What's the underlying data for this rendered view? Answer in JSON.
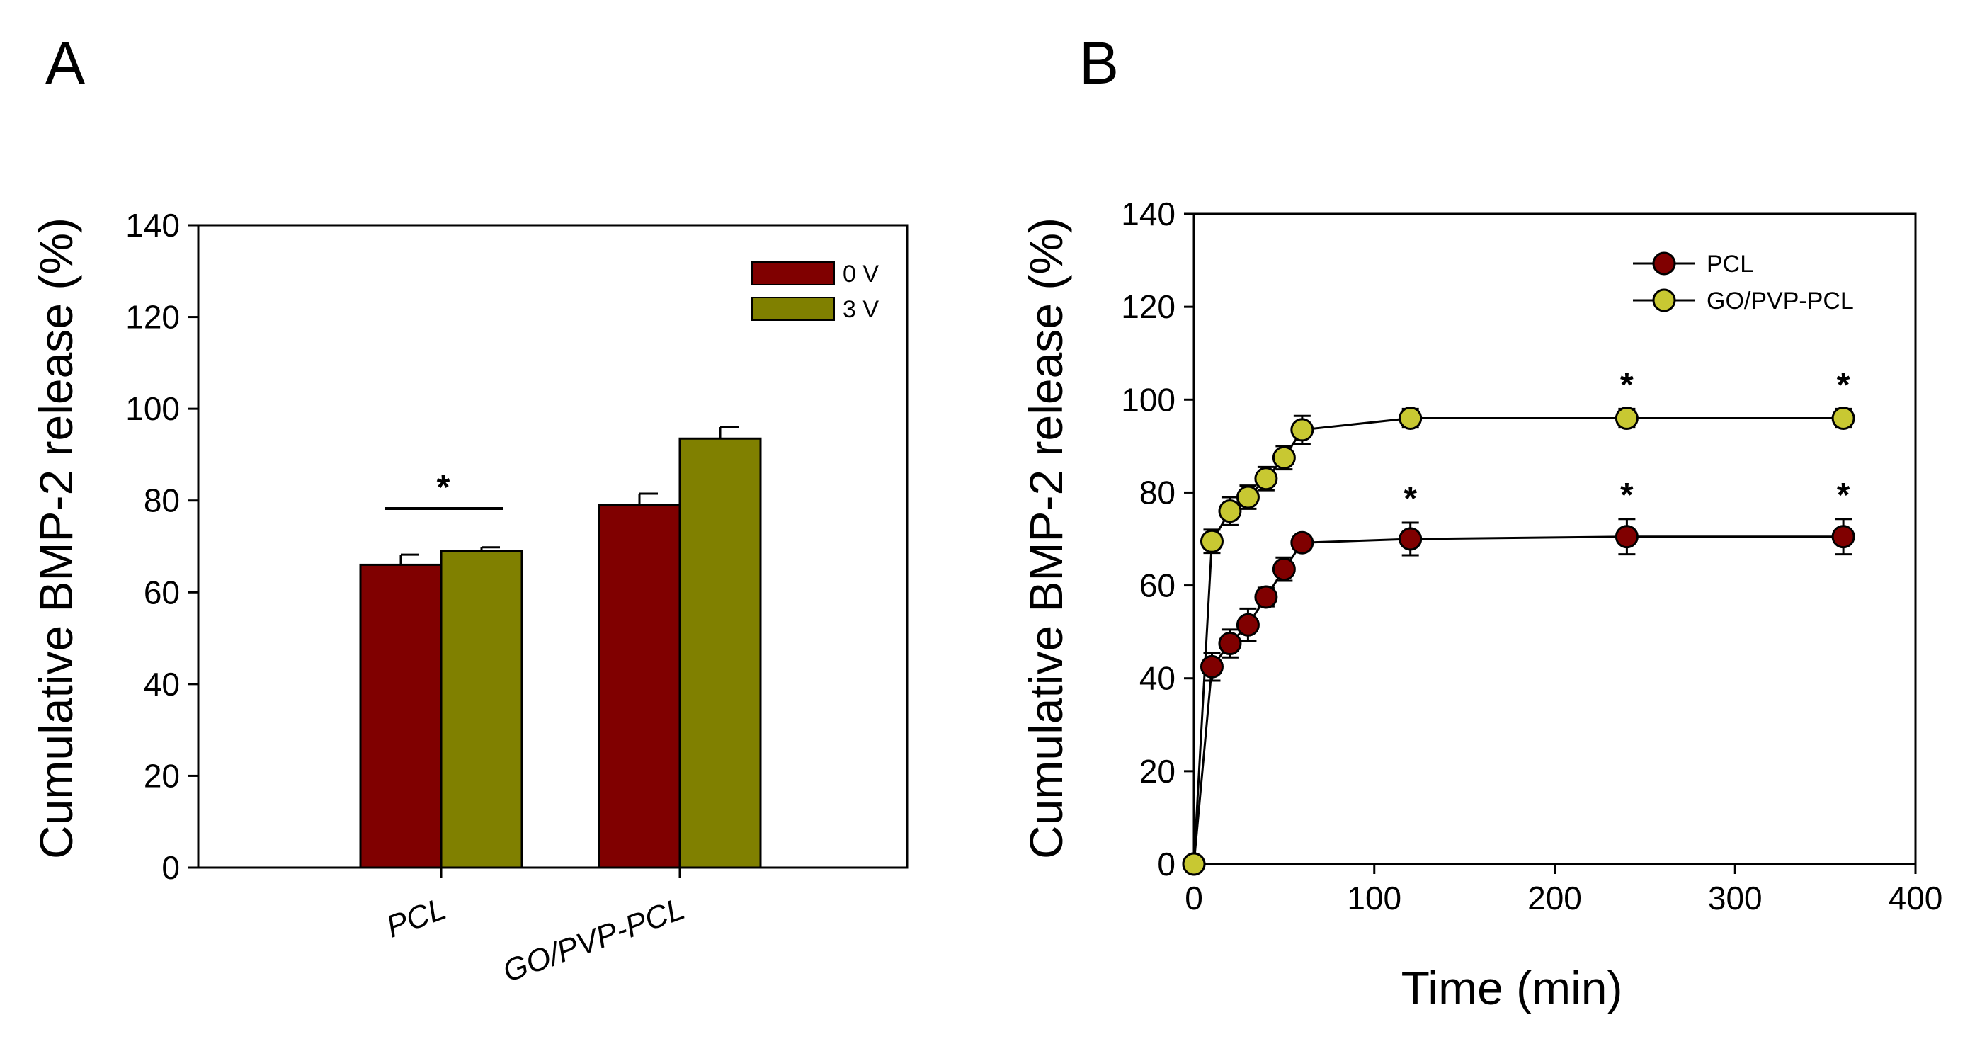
{
  "colors": {
    "pcl": "#800000",
    "go": "#808000",
    "go_marker": "#c8c832",
    "axis": "#000000"
  },
  "chart_data": [
    {
      "panel": "A",
      "type": "bar",
      "title": "",
      "xlabel": "",
      "ylabel": "Cumulative BMP-2 release (%)",
      "ylim": [
        0,
        140
      ],
      "yticks": [
        0,
        20,
        40,
        60,
        80,
        100,
        120,
        140
      ],
      "categories": [
        "PCL",
        "GO/PVP-PCL"
      ],
      "series": [
        {
          "name": "0 V",
          "values": [
            66,
            79
          ],
          "errors": [
            2.2,
            2.5
          ]
        },
        {
          "name": "3 V",
          "values": [
            69,
            93.5
          ],
          "errors": [
            0.8,
            2.5
          ]
        }
      ],
      "legend_position": "top-right",
      "annotations": [
        {
          "text": "*",
          "note": "significance bar over PCL pair"
        }
      ]
    },
    {
      "panel": "B",
      "type": "line",
      "title": "",
      "xlabel": "Time (min)",
      "ylabel": "Cumulative BMP-2 release (%)",
      "xlim": [
        0,
        400
      ],
      "ylim": [
        0,
        140
      ],
      "xticks": [
        0,
        100,
        200,
        300,
        400
      ],
      "yticks": [
        0,
        20,
        40,
        60,
        80,
        100,
        120,
        140
      ],
      "legend_position": "top-right",
      "series": [
        {
          "name": "PCL",
          "x": [
            0,
            10,
            20,
            30,
            40,
            50,
            60,
            120,
            240,
            360
          ],
          "y": [
            0,
            42.5,
            47.5,
            51.5,
            57.5,
            63.5,
            69.2,
            70.0,
            70.5,
            70.5
          ],
          "errors": [
            0,
            3,
            3,
            3.5,
            2,
            2.5,
            1.5,
            3.5,
            3.8,
            3.8
          ],
          "stars": [
            120,
            240,
            360
          ]
        },
        {
          "name": "GO/PVP-PCL",
          "x": [
            0,
            10,
            20,
            30,
            40,
            50,
            60,
            120,
            240,
            360
          ],
          "y": [
            0,
            69.5,
            76,
            79,
            83,
            87.5,
            93.5,
            96,
            96,
            96
          ],
          "errors": [
            0,
            2.5,
            3,
            2.5,
            2.5,
            2.5,
            3,
            2,
            2,
            2
          ],
          "stars": [
            240,
            360
          ]
        }
      ],
      "annotations": [
        {
          "text": "*"
        }
      ]
    }
  ]
}
